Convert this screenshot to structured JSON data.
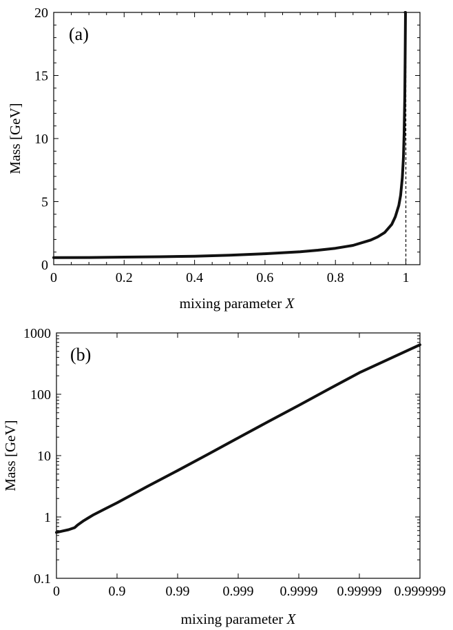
{
  "chart_data": [
    {
      "type": "line",
      "panel_label": "(a)",
      "xlabel": "mixing parameter",
      "xlabel_var": "X",
      "ylabel": "Mass [GeV]",
      "xlim": [
        0,
        1.04
      ],
      "ylim": [
        0,
        20
      ],
      "xticks": [
        0,
        0.2,
        0.4,
        0.6,
        0.8,
        1
      ],
      "xtick_labels": [
        "0",
        "0.2",
        "0.4",
        "0.6",
        "0.8",
        "1"
      ],
      "yticks": [
        0,
        5,
        10,
        15,
        20
      ],
      "ytick_labels": [
        "0",
        "5",
        "10",
        "15",
        "20"
      ],
      "asymptote_x": 1,
      "series": [
        {
          "x": [
            0,
            0.1,
            0.2,
            0.3,
            0.4,
            0.5,
            0.6,
            0.7,
            0.75,
            0.8,
            0.85,
            0.9,
            0.92,
            0.94,
            0.96,
            0.97,
            0.98,
            0.985,
            0.99,
            0.993,
            0.995,
            0.997,
            0.998,
            0.999
          ],
          "y": [
            0.56,
            0.57,
            0.6,
            0.63,
            0.67,
            0.75,
            0.87,
            1.03,
            1.15,
            1.3,
            1.53,
            1.95,
            2.2,
            2.55,
            3.2,
            3.8,
            4.7,
            5.5,
            6.9,
            8.5,
            10.4,
            13.5,
            16.5,
            20
          ]
        }
      ]
    },
    {
      "type": "line",
      "panel_label": "(b)",
      "xlabel": "mixing parameter",
      "xlabel_var": "X",
      "ylabel": "Mass [GeV]",
      "xscale": "-log10(1-X)",
      "yscale": "log",
      "xlim": [
        0,
        6
      ],
      "ylim": [
        0.1,
        1000
      ],
      "xticks": [
        0,
        1,
        2,
        3,
        4,
        5,
        6
      ],
      "xtick_labels": [
        "0",
        "0.9",
        "0.99",
        "0.999",
        "0.9999",
        "0.99999",
        "0.999999"
      ],
      "yticks": [
        0.1,
        1,
        10,
        100,
        1000
      ],
      "ytick_labels": [
        "0.1",
        "1",
        "10",
        "100",
        "1000"
      ],
      "series": [
        {
          "x": [
            0,
            0.1,
            0.2,
            0.3,
            0.35,
            0.45,
            0.6,
            0.8,
            1,
            1.5,
            2,
            2.5,
            3,
            3.5,
            4,
            4.5,
            5,
            5.5,
            6
          ],
          "y": [
            0.56,
            0.59,
            0.62,
            0.67,
            0.74,
            0.87,
            1.07,
            1.35,
            1.7,
            3.15,
            5.7,
            10.5,
            19.5,
            36,
            66,
            122,
            225,
            380,
            640
          ]
        }
      ]
    }
  ]
}
